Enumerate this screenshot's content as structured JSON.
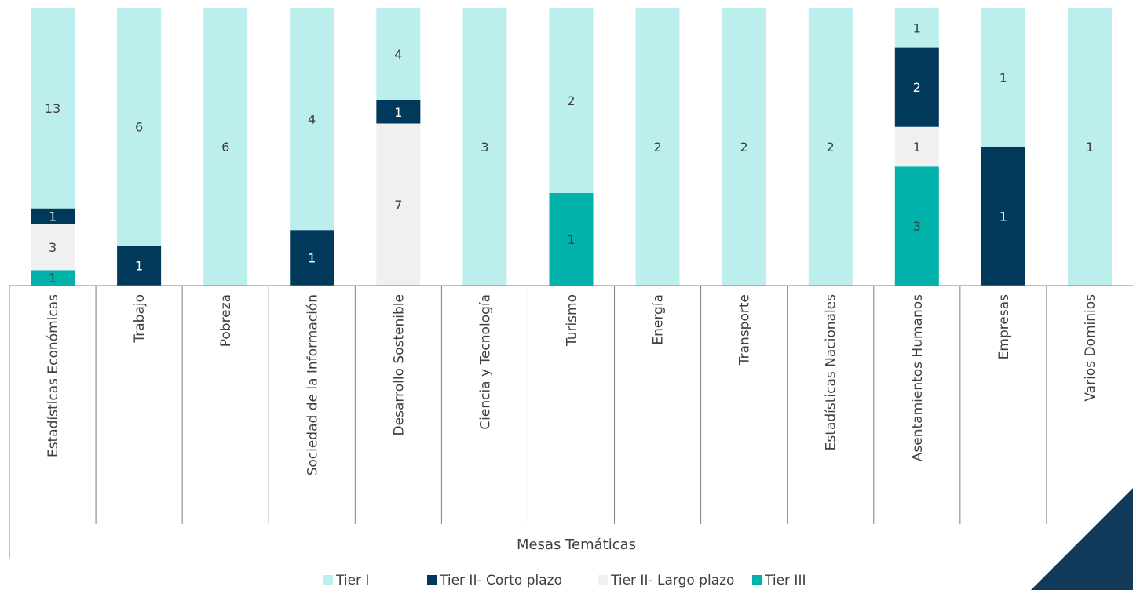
{
  "chart_data": {
    "type": "bar",
    "stacked": true,
    "categories": [
      "Estadísticas Económicas",
      "Trabajo",
      "Pobreza",
      "Sociedad de la Información",
      "Desarrollo Sostenible",
      "Ciencia y Tecnología",
      "Turismo",
      "Energía",
      "Transporte",
      "Estadísticas Nacionales",
      "Asentamientos Humanos",
      "Empresas",
      "Varios Dominios"
    ],
    "series": [
      {
        "name": "Tier III",
        "color": "#00b2a9",
        "values": [
          1,
          0,
          0,
          0,
          0,
          0,
          1,
          0,
          0,
          0,
          3,
          0,
          0
        ]
      },
      {
        "name": "Tier II- Largo plazo",
        "color": "#f0f0f0",
        "values": [
          3,
          0,
          0,
          0,
          7,
          0,
          0,
          0,
          0,
          0,
          1,
          0,
          0
        ]
      },
      {
        "name": "Tier II- Corto plazo",
        "color": "#00395a",
        "values": [
          1,
          1,
          0,
          1,
          1,
          0,
          0,
          0,
          0,
          0,
          2,
          1,
          0
        ]
      },
      {
        "name": "Tier I",
        "color": "#bdeeee",
        "values": [
          13,
          6,
          6,
          4,
          4,
          3,
          2,
          2,
          2,
          2,
          1,
          1,
          1
        ]
      }
    ],
    "legend_order": [
      "Tier I",
      "Tier II- Corto plazo",
      "Tier II- Largo plazo",
      "Tier III"
    ],
    "label_colors": {
      "Tier I": "#3f3f3f",
      "Tier II- Corto plazo": "#ffffff",
      "Tier II- Largo plazo": "#3f3f3f",
      "Tier III": "#3f3f3f"
    },
    "xlabel": "Mesas Temáticas",
    "ylabel": "",
    "legend_position": "bottom",
    "grid": false,
    "corner_color": "#123a5b"
  }
}
